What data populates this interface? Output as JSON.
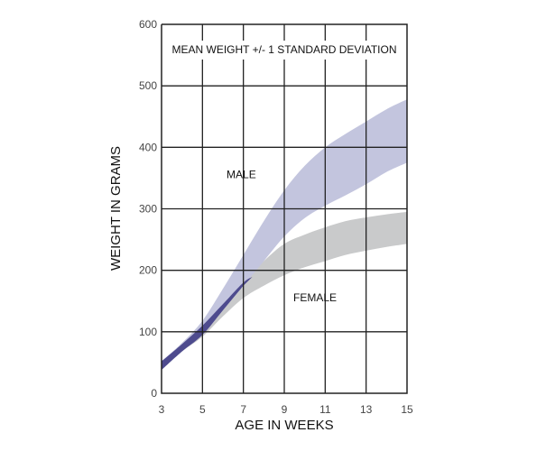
{
  "chart_data": {
    "type": "area",
    "title": "MEAN WEIGHT +/- 1 STANDARD DEVIATION",
    "xlabel": "AGE IN WEEKS",
    "ylabel": "WEIGHT IN GRAMS",
    "xlim": [
      3,
      15
    ],
    "ylim": [
      0,
      600
    ],
    "xticks": [
      3,
      5,
      7,
      9,
      11,
      13,
      15
    ],
    "yticks": [
      0,
      100,
      200,
      300,
      400,
      500,
      600
    ],
    "grid": true,
    "x": [
      3,
      4,
      5,
      6,
      7,
      8,
      9,
      10,
      11,
      12,
      13,
      14,
      15
    ],
    "series": [
      {
        "name": "MALE",
        "color": "#c3c5de",
        "lower": [
          38,
          68,
          95,
          135,
          175,
          215,
          255,
          285,
          305,
          322,
          340,
          360,
          375
        ],
        "upper": [
          52,
          82,
          118,
          170,
          225,
          280,
          330,
          370,
          400,
          422,
          442,
          462,
          478
        ]
      },
      {
        "name": "FEMALE",
        "color": "#c9cacb",
        "lower": [
          38,
          68,
          92,
          125,
          155,
          175,
          192,
          205,
          215,
          225,
          232,
          238,
          243
        ],
        "upper": [
          52,
          80,
          110,
          145,
          180,
          215,
          243,
          258,
          270,
          280,
          286,
          291,
          295
        ]
      }
    ],
    "overlap_color": "#4e4b8e",
    "annotations": [
      {
        "text": "MALE",
        "x": 6.9,
        "y": 350
      },
      {
        "text": "FEMALE",
        "x": 10.5,
        "y": 150
      }
    ]
  }
}
